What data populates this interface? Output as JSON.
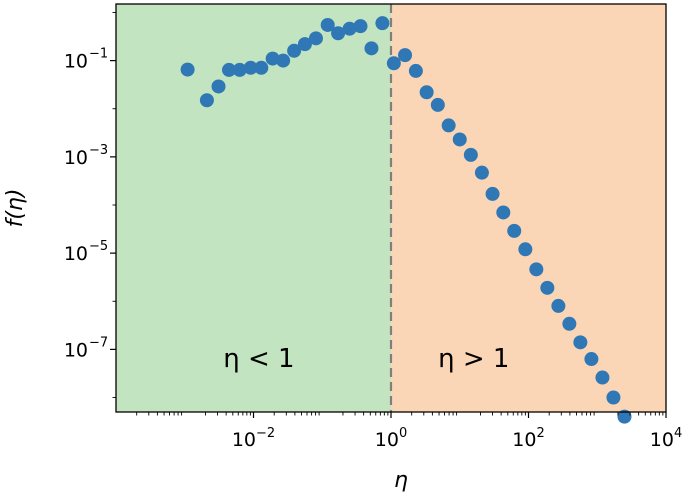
{
  "chart_data": {
    "type": "scatter",
    "xscale": "log",
    "yscale": "log",
    "xlim": [
      0.0001,
      10000
    ],
    "ylim": [
      5e-09,
      1.5
    ],
    "xlabel": "η",
    "ylabel": "f(η)",
    "grid": false,
    "x_ticks": [
      {
        "value": 0.01,
        "base": "10",
        "exp": "−2"
      },
      {
        "value": 1,
        "base": "10",
        "exp": "0"
      },
      {
        "value": 100,
        "base": "10",
        "exp": "2"
      },
      {
        "value": 10000,
        "base": "10",
        "exp": "4"
      }
    ],
    "y_ticks": [
      {
        "value": 0.1,
        "base": "10",
        "exp": "−1"
      },
      {
        "value": 0.001,
        "base": "10",
        "exp": "−3"
      },
      {
        "value": 1e-05,
        "base": "10",
        "exp": "−5"
      },
      {
        "value": 1e-07,
        "base": "10",
        "exp": "−7"
      }
    ],
    "regions": [
      {
        "label": "η < 1",
        "x_from": 0.0001,
        "x_to": 1,
        "color": "#c3e4c0"
      },
      {
        "label": "η > 1",
        "x_from": 1,
        "x_to": 10000,
        "color": "#fbd6b6"
      }
    ],
    "divider_x": 1,
    "marker_color": "#2f78b5",
    "series": [
      {
        "x": [
          0.0011,
          0.0021,
          0.0031,
          0.0044,
          0.0063,
          0.0091,
          0.013,
          0.019,
          0.027,
          0.039,
          0.056,
          0.081,
          0.12,
          0.17,
          0.25,
          0.36,
          0.52,
          0.75,
          1.1,
          1.6,
          2.3,
          3.3,
          4.8,
          6.9,
          10,
          14.5,
          21,
          30,
          43,
          62,
          90,
          130,
          188,
          272,
          393,
          568,
          822,
          1190,
          1720,
          2490
        ],
        "y": [
          0.065,
          0.015,
          0.029,
          0.064,
          0.064,
          0.071,
          0.071,
          0.11,
          0.1,
          0.16,
          0.22,
          0.29,
          0.55,
          0.37,
          0.46,
          0.52,
          0.18,
          0.6,
          0.088,
          0.13,
          0.061,
          0.022,
          0.012,
          0.0045,
          0.0023,
          0.0011,
          0.00047,
          0.00017,
          7e-05,
          2.9e-05,
          1.2e-05,
          4.6e-06,
          1.9e-06,
          8e-07,
          3.4e-07,
          1.4e-07,
          6.3e-08,
          2.6e-08,
          1e-08,
          4e-09
        ]
      }
    ]
  }
}
